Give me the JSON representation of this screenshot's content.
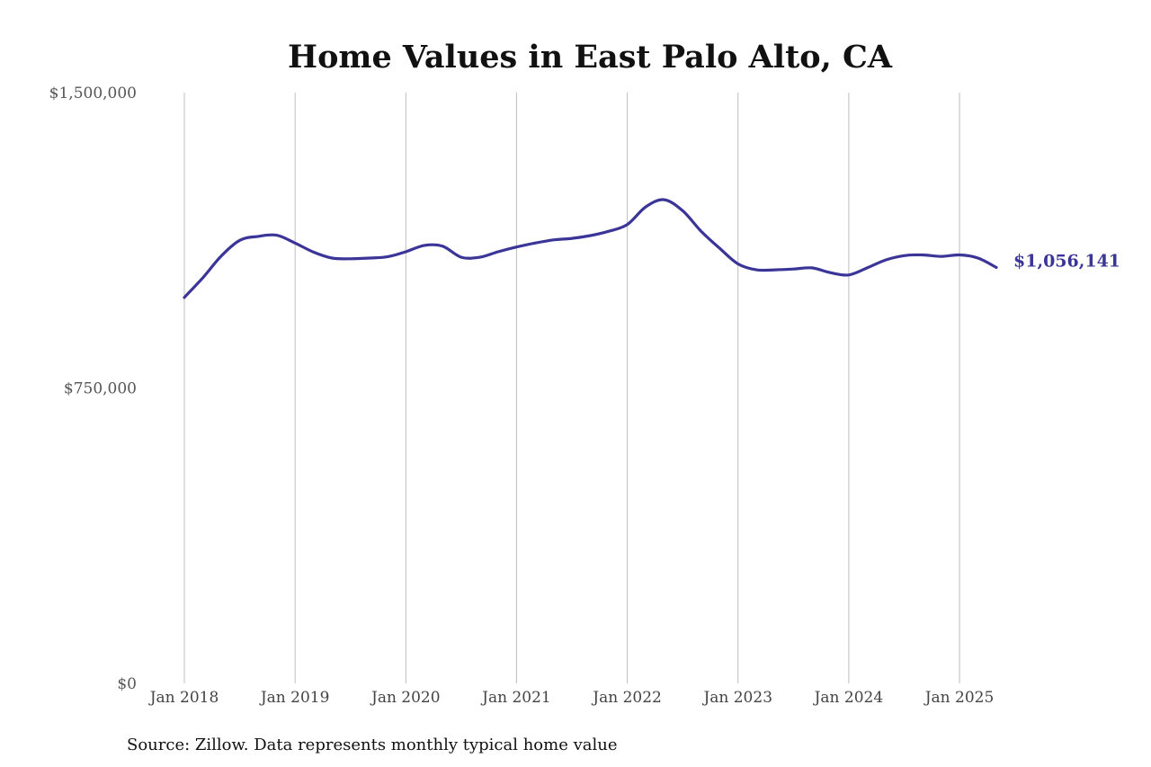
{
  "chart_data": {
    "type": "line",
    "title": "Home Values in East Palo Alto, CA",
    "source": "Source: Zillow. Data represents monthly typical home value",
    "ylim": [
      0,
      1500000
    ],
    "yticks": [
      {
        "value": 0,
        "label": "$0"
      },
      {
        "value": 750000,
        "label": "$750,000"
      },
      {
        "value": 1500000,
        "label": "$1,500,000"
      }
    ],
    "xlim": [
      2018.0,
      2025.5
    ],
    "xticks": [
      {
        "value": 2018,
        "label": "Jan 2018"
      },
      {
        "value": 2019,
        "label": "Jan 2019"
      },
      {
        "value": 2020,
        "label": "Jan 2020"
      },
      {
        "value": 2021,
        "label": "Jan 2021"
      },
      {
        "value": 2022,
        "label": "Jan 2022"
      },
      {
        "value": 2023,
        "label": "Jan 2023"
      },
      {
        "value": 2024,
        "label": "Jan 2024"
      },
      {
        "value": 2025,
        "label": "Jan 2025"
      }
    ],
    "grid": "vertical",
    "line_color": "#3a3597",
    "end_label": "$1,056,141",
    "series": [
      {
        "x": [
          2018.0,
          2018.167,
          2018.333,
          2018.5,
          2018.667,
          2018.833,
          2019.0,
          2019.167,
          2019.333,
          2019.5,
          2019.667,
          2019.833,
          2020.0,
          2020.167,
          2020.333,
          2020.5,
          2020.667,
          2020.833,
          2021.0,
          2021.167,
          2021.333,
          2021.5,
          2021.667,
          2021.833,
          2022.0,
          2022.167,
          2022.333,
          2022.5,
          2022.667,
          2022.833,
          2023.0,
          2023.167,
          2023.333,
          2023.5,
          2023.667,
          2023.833,
          2024.0,
          2024.167,
          2024.333,
          2024.5,
          2024.667,
          2024.833,
          2025.0,
          2025.167,
          2025.333
        ],
        "y": [
          980000,
          1030000,
          1085000,
          1125000,
          1135000,
          1138000,
          1118000,
          1095000,
          1080000,
          1078000,
          1080000,
          1083000,
          1096000,
          1112000,
          1110000,
          1082000,
          1082000,
          1096000,
          1108000,
          1118000,
          1126000,
          1130000,
          1137000,
          1148000,
          1165000,
          1210000,
          1228000,
          1200000,
          1148000,
          1105000,
          1065000,
          1050000,
          1050000,
          1052000,
          1055000,
          1043000,
          1037000,
          1055000,
          1075000,
          1086000,
          1088000,
          1084000,
          1088000,
          1080000,
          1056141
        ]
      }
    ]
  }
}
